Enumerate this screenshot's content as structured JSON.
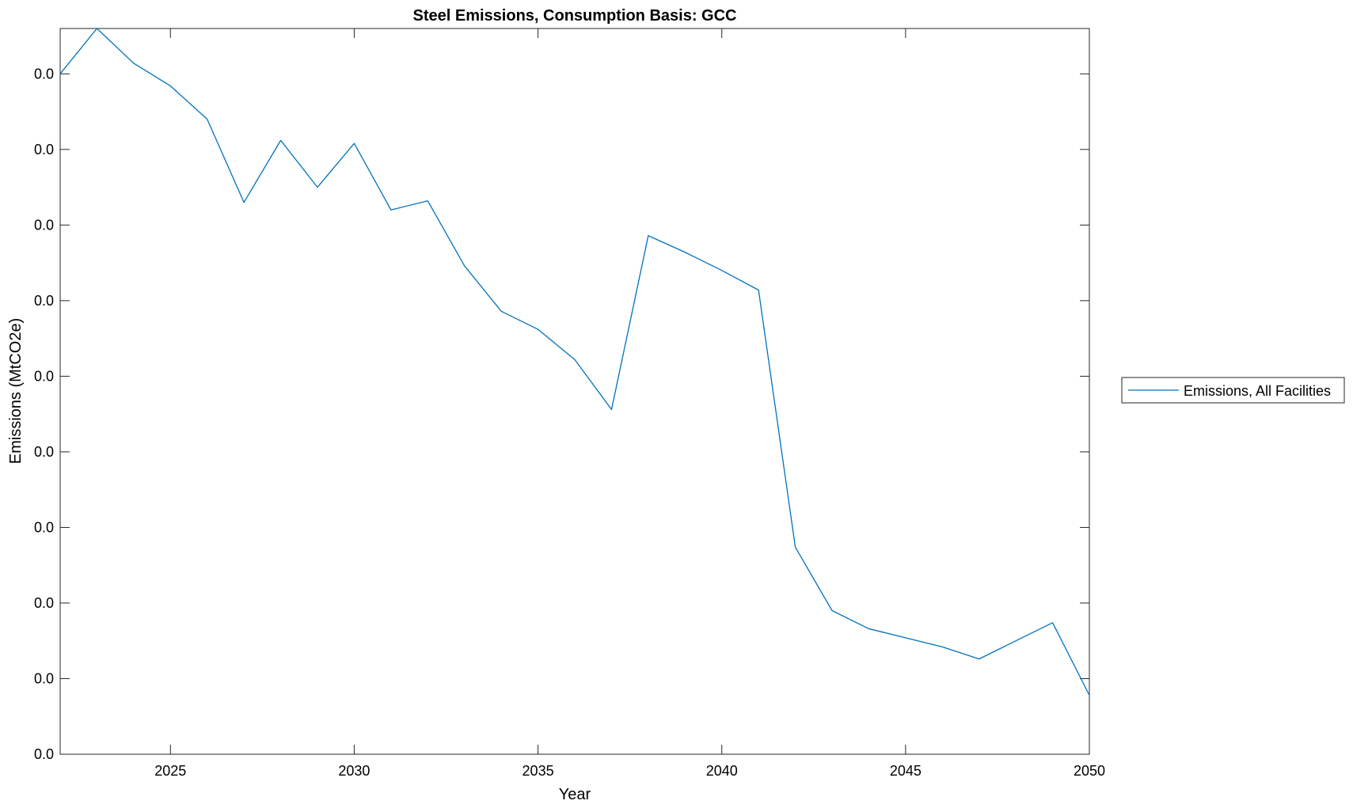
{
  "chart_data": {
    "type": "line",
    "title": "Steel Emissions, Consumption Basis: GCC",
    "xlabel": "Year",
    "ylabel": "Emissions (MtCO2e)",
    "xlim": [
      2022,
      2050
    ],
    "ylim": [
      0,
      0.048
    ],
    "x_ticks": [
      2025,
      2030,
      2035,
      2040,
      2045,
      2050
    ],
    "x_tick_labels": [
      "2025",
      "2030",
      "2035",
      "2040",
      "2045",
      "2050"
    ],
    "y_ticks": [
      0,
      0.005,
      0.01,
      0.015,
      0.02,
      0.025,
      0.03,
      0.035,
      0.04,
      0.045
    ],
    "y_tick_labels": [
      "0.0",
      "0.0",
      "0.0",
      "0.0",
      "0.0",
      "0.0",
      "0.0",
      "0.0",
      "0.0",
      "0.0"
    ],
    "grid": false,
    "legend_placement": "outside-right",
    "x": [
      2022,
      2023,
      2024,
      2025,
      2026,
      2027,
      2028,
      2029,
      2030,
      2031,
      2032,
      2033,
      2034,
      2035,
      2036,
      2037,
      2038,
      2039,
      2040,
      2041,
      2042,
      2043,
      2044,
      2045,
      2046,
      2047,
      2048,
      2049,
      2050
    ],
    "series": [
      {
        "name": "Emissions, All Facilities",
        "color": "#0072BD",
        "values": [
          0.045,
          0.048,
          0.0457,
          0.0442,
          0.042,
          0.0365,
          0.0406,
          0.0375,
          0.0404,
          0.036,
          0.0366,
          0.0323,
          0.0293,
          0.0281,
          0.0261,
          0.0228,
          0.0343,
          0.0332,
          0.032,
          0.0307,
          0.0137,
          0.0095,
          0.0083,
          0.0077,
          0.0071,
          0.0063,
          0.0075,
          0.0087,
          0.0039
        ]
      }
    ]
  }
}
